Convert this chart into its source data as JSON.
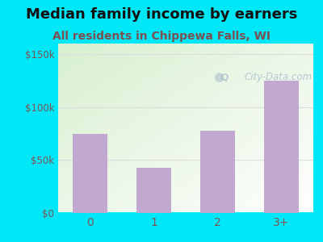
{
  "title": "Median family income by earners",
  "subtitle": "All residents in Chippewa Falls, WI",
  "categories": [
    "0",
    "1",
    "2",
    "3+"
  ],
  "values": [
    75000,
    43000,
    78000,
    125000
  ],
  "bar_color": "#c0a8d0",
  "ylim": [
    0,
    160000
  ],
  "yticks": [
    0,
    50000,
    100000,
    150000
  ],
  "ytick_labels": [
    "$0",
    "$50k",
    "$100k",
    "$150k"
  ],
  "outer_bg": "#00e8f8",
  "title_color": "#111111",
  "subtitle_color": "#7a5050",
  "tick_color": "#7a5555",
  "watermark": "City-Data.com",
  "title_fontsize": 13,
  "subtitle_fontsize": 10,
  "grid_color": "#dddddd"
}
